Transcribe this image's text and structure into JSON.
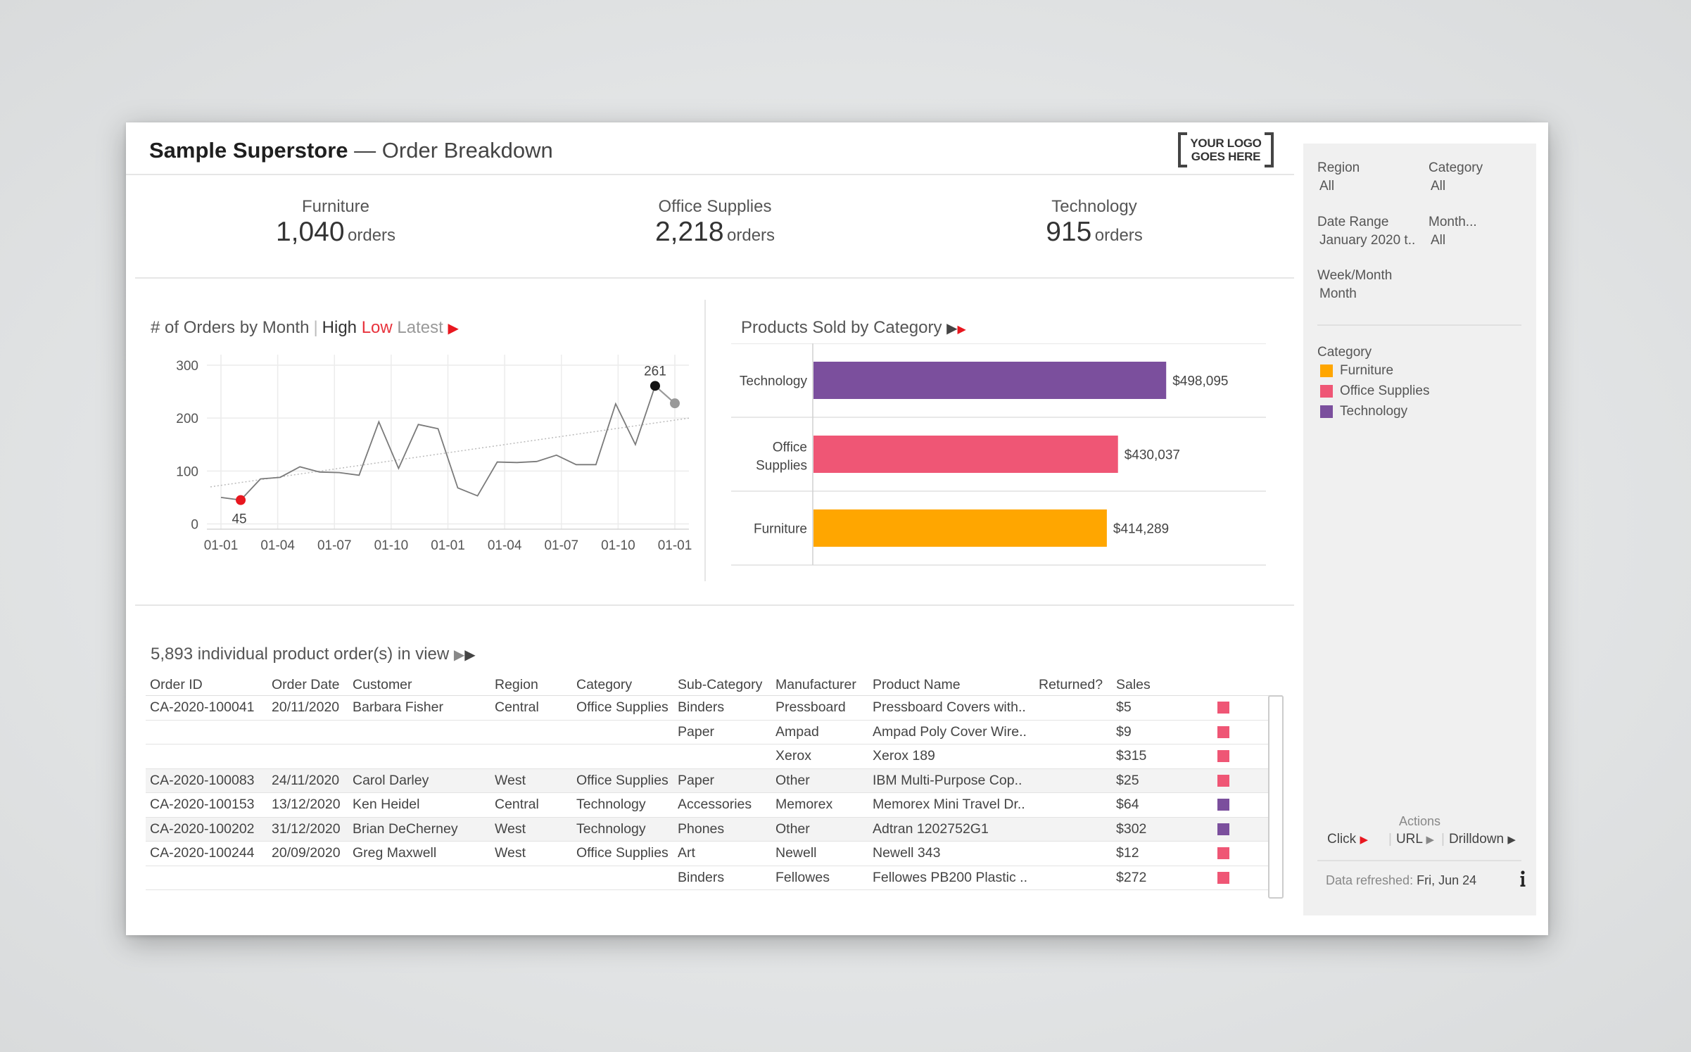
{
  "header": {
    "title_bold": "Sample Superstore",
    "title_rest": " — Order Breakdown",
    "logo_line1": "YOUR LOGO",
    "logo_line2": "GOES HERE"
  },
  "kpis": [
    {
      "label": "Furniture",
      "value": "1,040",
      "unit": "orders"
    },
    {
      "label": "Office Supplies",
      "value": "2,218",
      "unit": "orders"
    },
    {
      "label": "Technology",
      "value": "915",
      "unit": "orders"
    }
  ],
  "line_chart_header": {
    "title": "# of Orders by Month",
    "high": "High",
    "low": "Low",
    "latest": "Latest",
    "arrow": "▶"
  },
  "bar_chart_header": {
    "title": "Products Sold by Category",
    "arrows": "▶▸"
  },
  "chart_data": [
    {
      "type": "line",
      "title": "# of Orders by Month",
      "x_tick_labels": [
        "01-01",
        "01-04",
        "01-07",
        "01-10",
        "01-01",
        "01-04",
        "01-07",
        "01-10",
        "01-01"
      ],
      "y_ticks": [
        0,
        100,
        200,
        300
      ],
      "ylim": [
        -10,
        320
      ],
      "grid": true,
      "values": [
        50,
        45,
        85,
        88,
        108,
        98,
        97,
        92,
        193,
        105,
        188,
        180,
        68,
        53,
        117,
        116,
        118,
        130,
        112,
        112,
        227,
        150,
        261,
        228
      ],
      "annotations": {
        "low": 45,
        "high": 261
      },
      "trend_line": {
        "start": 70,
        "end": 200
      },
      "colors": {
        "line": "#7a7a7a",
        "low": "#e8171f",
        "high": "#111111",
        "latest": "#999999",
        "trend": "#bbbbbb"
      }
    },
    {
      "type": "bar",
      "orientation": "horizontal",
      "title": "Products Sold by Category",
      "categories": [
        "Technology",
        "Office Supplies",
        "Furniture"
      ],
      "values": [
        498095,
        430037,
        414289
      ],
      "value_labels": [
        "$498,095",
        "$430,037",
        "$414,289"
      ],
      "colors": [
        "#7b4f9d",
        "#ef5675",
        "#ffa600"
      ],
      "xlim": [
        0,
        640000
      ]
    }
  ],
  "table": {
    "heading": "5,893 individual product order(s) in view",
    "heading_arrows": "▶▶",
    "columns": [
      "Order ID",
      "Order Date",
      "Customer",
      "Region",
      "Category",
      "Sub-Category",
      "Manufacturer",
      "Product Name",
      "Returned?",
      "Sales"
    ],
    "rows": [
      {
        "cells": [
          "CA-2020-100041",
          "20/11/2020",
          "Barbara Fisher",
          "Central",
          "Office Supplies",
          "Binders",
          "Pressboard",
          "Pressboard Covers with..",
          "",
          "$5"
        ],
        "color": "#ef5675",
        "shaded": false
      },
      {
        "cells": [
          "",
          "",
          "",
          "",
          "",
          "Paper",
          "Ampad",
          "Ampad Poly Cover Wire..",
          "",
          "$9"
        ],
        "color": "#ef5675",
        "shaded": false
      },
      {
        "cells": [
          "",
          "",
          "",
          "",
          "",
          "",
          "Xerox",
          "Xerox 189",
          "",
          "$315"
        ],
        "color": "#ef5675",
        "shaded": false
      },
      {
        "cells": [
          "CA-2020-100083",
          "24/11/2020",
          "Carol Darley",
          "West",
          "Office Supplies",
          "Paper",
          "Other",
          "IBM Multi-Purpose Cop..",
          "",
          "$25"
        ],
        "color": "#ef5675",
        "shaded": true
      },
      {
        "cells": [
          "CA-2020-100153",
          "13/12/2020",
          "Ken Heidel",
          "Central",
          "Technology",
          "Accessories",
          "Memorex",
          "Memorex Mini Travel Dr..",
          "",
          "$64"
        ],
        "color": "#7b4f9d",
        "shaded": false
      },
      {
        "cells": [
          "CA-2020-100202",
          "31/12/2020",
          "Brian DeCherney",
          "West",
          "Technology",
          "Phones",
          "Other",
          "Adtran 1202752G1",
          "",
          "$302"
        ],
        "color": "#7b4f9d",
        "shaded": true
      },
      {
        "cells": [
          "CA-2020-100244",
          "20/09/2020",
          "Greg Maxwell",
          "West",
          "Office Supplies",
          "Art",
          "Newell",
          "Newell 343",
          "",
          "$12"
        ],
        "color": "#ef5675",
        "shaded": false
      },
      {
        "cells": [
          "",
          "",
          "",
          "",
          "",
          "Binders",
          "Fellowes",
          "Fellowes PB200 Plastic ..",
          "",
          "$272"
        ],
        "color": "#ef5675",
        "shaded": false
      }
    ]
  },
  "sidebar": {
    "filters": [
      {
        "label": "Region",
        "value": "All"
      },
      {
        "label": "Category",
        "value": "All"
      },
      {
        "label": "Date Range",
        "value": "January 2020 t.."
      },
      {
        "label": "Month...",
        "value": "All"
      },
      {
        "label": "Week/Month",
        "value": "Month"
      }
    ],
    "legend_title": "Category",
    "legend": [
      {
        "label": "Furniture",
        "color": "#ffa600"
      },
      {
        "label": "Office Supplies",
        "color": "#ef5675"
      },
      {
        "label": "Technology",
        "color": "#7b4f9d"
      }
    ],
    "actions_title": "Actions",
    "actions": [
      {
        "label": "Click",
        "arrow": "▶",
        "arrow_color": "#e8171f"
      },
      {
        "label": "URL",
        "arrow": "▶",
        "arrow_color": "#888888"
      },
      {
        "label": "Drilldown",
        "arrow": "▶",
        "arrow_color": "#444444"
      }
    ],
    "refresh_label": "Data refreshed:",
    "refresh_value": "Fri, Jun 24",
    "info_icon": "info-icon"
  }
}
